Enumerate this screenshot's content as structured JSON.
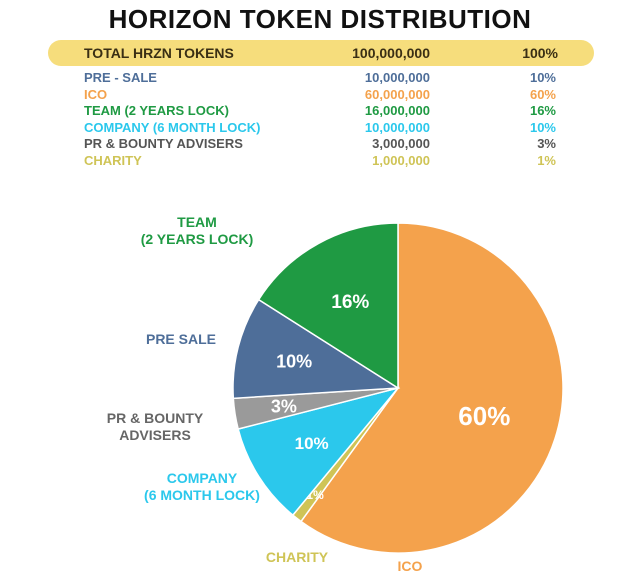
{
  "title": "HORIZON TOKEN DISTRIBUTION",
  "total": {
    "label": "TOTAL HRZN TOKENS",
    "amount": "100,000,000",
    "percent": "100%"
  },
  "colors": {
    "total_bar": "#f6dd7c",
    "pre_sale": "#4e6e99",
    "ico": "#f4a24c",
    "team": "#1f9a43",
    "company": "#2bc8ec",
    "pr_bounty": "#9a9a9a",
    "charity": "#cfc456"
  },
  "chart_data": {
    "type": "pie",
    "slices": [
      {
        "key": "ico",
        "label": "ICO",
        "amount": "60,000,000",
        "value": 60,
        "display": "60%",
        "color": "#f4a24c",
        "pie_label": [
          "ICO"
        ]
      },
      {
        "key": "charity",
        "label": "CHARITY",
        "amount": "1,000,000",
        "value": 1,
        "display": "1%",
        "color": "#cfc456",
        "pie_label": [
          "CHARITY"
        ]
      },
      {
        "key": "company",
        "label": "COMPANY (6 MONTH LOCK)",
        "amount": "10,000,000",
        "value": 10,
        "display": "10%",
        "color": "#2bc8ec",
        "pie_label": [
          "COMPANY",
          "(6 MONTH LOCK)"
        ]
      },
      {
        "key": "pr_bounty",
        "label": "PR & BOUNTY ADVISERS",
        "amount": "3,000,000",
        "value": 3,
        "display": "3%",
        "color": "#9a9a9a",
        "pie_label": [
          "PR & BOUNTY",
          "ADVISERS"
        ]
      },
      {
        "key": "pre_sale",
        "label": "PRE - SALE",
        "amount": "10,000,000",
        "value": 10,
        "display": "10%",
        "color": "#4e6e99",
        "pie_label": [
          "PRE SALE"
        ]
      },
      {
        "key": "team",
        "label": "TEAM (2 YEARS LOCK)",
        "amount": "16,000,000",
        "value": 16,
        "display": "16%",
        "color": "#1f9a43",
        "pie_label": [
          "TEAM",
          "(2 YEARS LOCK)"
        ]
      }
    ],
    "table_order": [
      "pre_sale",
      "ico",
      "team",
      "company",
      "pr_bounty",
      "charity"
    ],
    "start_angle_deg": 0,
    "direction": "clockwise"
  }
}
